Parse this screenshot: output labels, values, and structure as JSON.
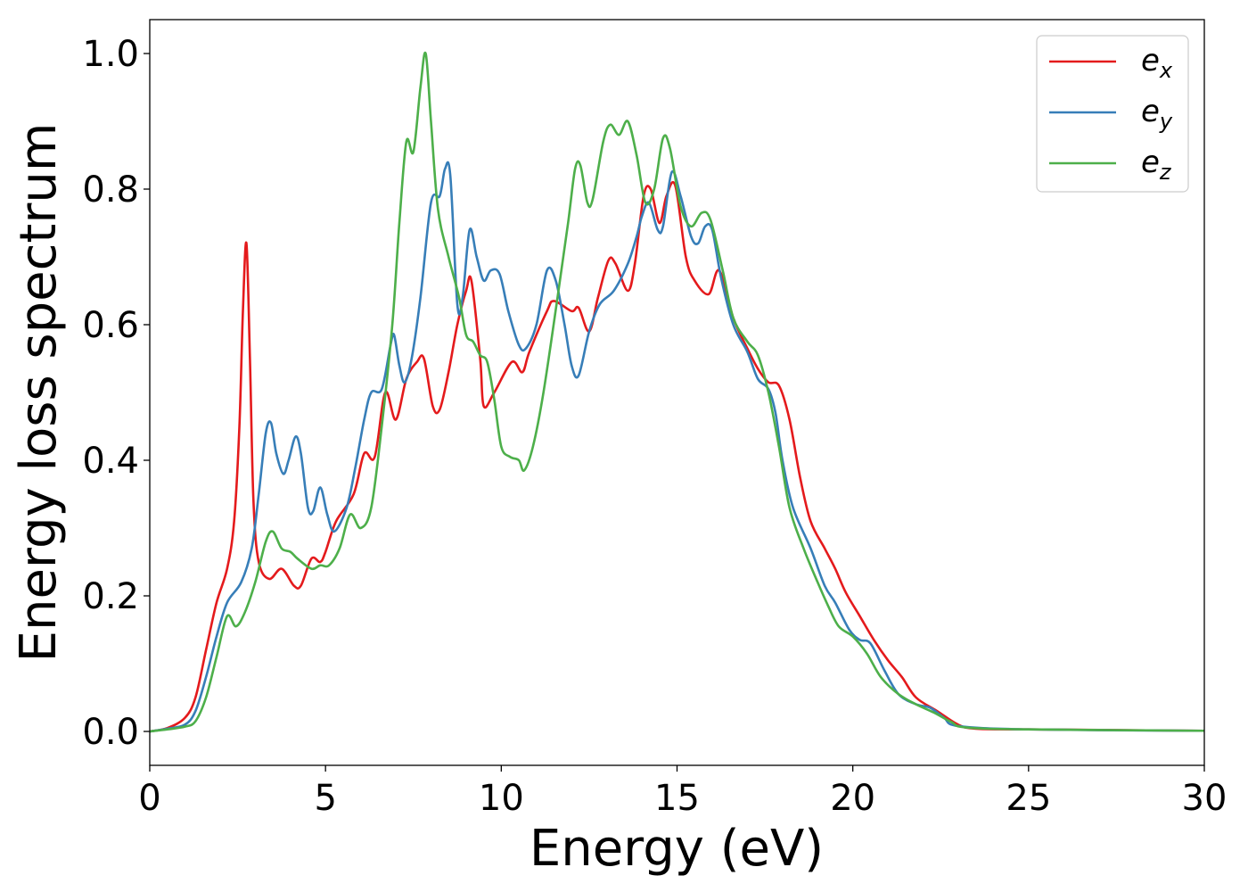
{
  "chart_data": {
    "type": "line",
    "title": "",
    "xlabel": "Energy (eV)",
    "ylabel": "Energy loss spectrum",
    "xlim": [
      0,
      30
    ],
    "ylim": [
      -0.05,
      1.05
    ],
    "xticks": [
      0,
      5,
      10,
      15,
      20,
      25,
      30
    ],
    "xtick_labels": [
      "0",
      "5",
      "10",
      "15",
      "20",
      "25",
      "30"
    ],
    "yticks": [
      0.0,
      0.2,
      0.4,
      0.6,
      0.8,
      1.0
    ],
    "ytick_labels": [
      "0.0",
      "0.2",
      "0.4",
      "0.6",
      "0.8",
      "1.0"
    ],
    "grid": false,
    "legend_position": "top-right",
    "series": [
      {
        "name": "e_x",
        "label_main": "e",
        "label_sub": "x",
        "color": "#e41a1c",
        "points": [
          [
            0,
            0
          ],
          [
            0.5,
            0.005
          ],
          [
            1.0,
            0.02
          ],
          [
            1.3,
            0.05
          ],
          [
            1.6,
            0.12
          ],
          [
            1.9,
            0.19
          ],
          [
            2.2,
            0.24
          ],
          [
            2.4,
            0.31
          ],
          [
            2.55,
            0.45
          ],
          [
            2.65,
            0.62
          ],
          [
            2.75,
            0.72
          ],
          [
            2.85,
            0.55
          ],
          [
            2.95,
            0.34
          ],
          [
            3.1,
            0.25
          ],
          [
            3.4,
            0.225
          ],
          [
            3.75,
            0.24
          ],
          [
            4.1,
            0.215
          ],
          [
            4.3,
            0.215
          ],
          [
            4.6,
            0.255
          ],
          [
            4.85,
            0.25
          ],
          [
            5.0,
            0.265
          ],
          [
            5.3,
            0.31
          ],
          [
            5.8,
            0.35
          ],
          [
            6.1,
            0.41
          ],
          [
            6.4,
            0.405
          ],
          [
            6.7,
            0.5
          ],
          [
            7.0,
            0.46
          ],
          [
            7.3,
            0.52
          ],
          [
            7.6,
            0.545
          ],
          [
            7.8,
            0.55
          ],
          [
            8.05,
            0.48
          ],
          [
            8.25,
            0.475
          ],
          [
            8.5,
            0.53
          ],
          [
            8.75,
            0.6
          ],
          [
            9.0,
            0.65
          ],
          [
            9.15,
            0.665
          ],
          [
            9.4,
            0.55
          ],
          [
            9.5,
            0.48
          ],
          [
            9.8,
            0.5
          ],
          [
            10.3,
            0.545
          ],
          [
            10.6,
            0.53
          ],
          [
            10.8,
            0.56
          ],
          [
            11.3,
            0.62
          ],
          [
            11.5,
            0.635
          ],
          [
            12.0,
            0.62
          ],
          [
            12.2,
            0.625
          ],
          [
            12.5,
            0.59
          ],
          [
            12.75,
            0.64
          ],
          [
            13.05,
            0.695
          ],
          [
            13.25,
            0.69
          ],
          [
            13.6,
            0.65
          ],
          [
            13.8,
            0.69
          ],
          [
            14.05,
            0.79
          ],
          [
            14.25,
            0.8
          ],
          [
            14.5,
            0.75
          ],
          [
            14.7,
            0.79
          ],
          [
            14.95,
            0.805
          ],
          [
            15.25,
            0.7
          ],
          [
            15.5,
            0.665
          ],
          [
            15.9,
            0.645
          ],
          [
            16.2,
            0.68
          ],
          [
            16.6,
            0.61
          ],
          [
            17.0,
            0.565
          ],
          [
            17.3,
            0.535
          ],
          [
            17.6,
            0.515
          ],
          [
            17.9,
            0.51
          ],
          [
            18.2,
            0.46
          ],
          [
            18.5,
            0.375
          ],
          [
            18.8,
            0.31
          ],
          [
            19.2,
            0.27
          ],
          [
            19.5,
            0.24
          ],
          [
            19.8,
            0.205
          ],
          [
            20.2,
            0.17
          ],
          [
            20.6,
            0.135
          ],
          [
            21.0,
            0.105
          ],
          [
            21.4,
            0.08
          ],
          [
            21.8,
            0.05
          ],
          [
            22.4,
            0.03
          ],
          [
            23.0,
            0.01
          ],
          [
            23.5,
            0.004
          ],
          [
            25,
            0.003
          ],
          [
            30,
            0.001
          ]
        ]
      },
      {
        "name": "e_y",
        "label_main": "e",
        "label_sub": "y",
        "color": "#377eb8",
        "points": [
          [
            0,
            0
          ],
          [
            0.5,
            0.004
          ],
          [
            1.0,
            0.01
          ],
          [
            1.3,
            0.03
          ],
          [
            1.6,
            0.08
          ],
          [
            1.9,
            0.14
          ],
          [
            2.2,
            0.19
          ],
          [
            2.6,
            0.22
          ],
          [
            2.9,
            0.27
          ],
          [
            3.1,
            0.35
          ],
          [
            3.3,
            0.44
          ],
          [
            3.45,
            0.455
          ],
          [
            3.6,
            0.41
          ],
          [
            3.8,
            0.38
          ],
          [
            3.95,
            0.4
          ],
          [
            4.15,
            0.435
          ],
          [
            4.3,
            0.41
          ],
          [
            4.5,
            0.33
          ],
          [
            4.65,
            0.325
          ],
          [
            4.85,
            0.36
          ],
          [
            5.05,
            0.32
          ],
          [
            5.25,
            0.295
          ],
          [
            5.6,
            0.33
          ],
          [
            5.85,
            0.39
          ],
          [
            6.1,
            0.46
          ],
          [
            6.3,
            0.5
          ],
          [
            6.6,
            0.505
          ],
          [
            6.85,
            0.57
          ],
          [
            6.95,
            0.585
          ],
          [
            7.1,
            0.54
          ],
          [
            7.25,
            0.515
          ],
          [
            7.45,
            0.55
          ],
          [
            7.7,
            0.64
          ],
          [
            8.0,
            0.78
          ],
          [
            8.25,
            0.79
          ],
          [
            8.4,
            0.83
          ],
          [
            8.55,
            0.82
          ],
          [
            8.75,
            0.63
          ],
          [
            8.9,
            0.64
          ],
          [
            9.1,
            0.74
          ],
          [
            9.3,
            0.7
          ],
          [
            9.5,
            0.665
          ],
          [
            9.7,
            0.68
          ],
          [
            9.95,
            0.675
          ],
          [
            10.2,
            0.62
          ],
          [
            10.5,
            0.57
          ],
          [
            10.7,
            0.565
          ],
          [
            11.0,
            0.6
          ],
          [
            11.3,
            0.68
          ],
          [
            11.55,
            0.665
          ],
          [
            11.8,
            0.6
          ],
          [
            12.0,
            0.54
          ],
          [
            12.2,
            0.525
          ],
          [
            12.5,
            0.59
          ],
          [
            12.8,
            0.63
          ],
          [
            13.2,
            0.65
          ],
          [
            13.6,
            0.69
          ],
          [
            13.85,
            0.73
          ],
          [
            14.0,
            0.76
          ],
          [
            14.2,
            0.78
          ],
          [
            14.45,
            0.74
          ],
          [
            14.6,
            0.745
          ],
          [
            14.85,
            0.825
          ],
          [
            15.1,
            0.79
          ],
          [
            15.4,
            0.73
          ],
          [
            15.6,
            0.72
          ],
          [
            15.8,
            0.745
          ],
          [
            16.0,
            0.74
          ],
          [
            16.25,
            0.67
          ],
          [
            16.6,
            0.6
          ],
          [
            17.0,
            0.56
          ],
          [
            17.3,
            0.52
          ],
          [
            17.6,
            0.505
          ],
          [
            17.8,
            0.47
          ],
          [
            18.0,
            0.4
          ],
          [
            18.3,
            0.33
          ],
          [
            18.8,
            0.27
          ],
          [
            19.2,
            0.215
          ],
          [
            19.5,
            0.19
          ],
          [
            19.9,
            0.15
          ],
          [
            20.2,
            0.135
          ],
          [
            20.5,
            0.13
          ],
          [
            20.9,
            0.09
          ],
          [
            21.3,
            0.055
          ],
          [
            21.8,
            0.04
          ],
          [
            22.2,
            0.035
          ],
          [
            22.6,
            0.02
          ],
          [
            23.0,
            0.008
          ],
          [
            25,
            0.003
          ],
          [
            30,
            0.001
          ]
        ]
      },
      {
        "name": "e_z",
        "label_main": "e",
        "label_sub": "z",
        "color": "#4daf4a",
        "points": [
          [
            0,
            0
          ],
          [
            0.5,
            0.003
          ],
          [
            1.0,
            0.007
          ],
          [
            1.3,
            0.015
          ],
          [
            1.6,
            0.05
          ],
          [
            1.9,
            0.11
          ],
          [
            2.2,
            0.17
          ],
          [
            2.45,
            0.155
          ],
          [
            2.7,
            0.175
          ],
          [
            3.0,
            0.22
          ],
          [
            3.3,
            0.28
          ],
          [
            3.5,
            0.295
          ],
          [
            3.75,
            0.27
          ],
          [
            4.0,
            0.265
          ],
          [
            4.2,
            0.255
          ],
          [
            4.6,
            0.24
          ],
          [
            4.85,
            0.245
          ],
          [
            5.1,
            0.245
          ],
          [
            5.4,
            0.27
          ],
          [
            5.7,
            0.32
          ],
          [
            6.0,
            0.3
          ],
          [
            6.3,
            0.33
          ],
          [
            6.6,
            0.45
          ],
          [
            6.9,
            0.6
          ],
          [
            7.1,
            0.75
          ],
          [
            7.3,
            0.87
          ],
          [
            7.5,
            0.855
          ],
          [
            7.7,
            0.95
          ],
          [
            7.85,
            1.0
          ],
          [
            8.0,
            0.9
          ],
          [
            8.2,
            0.77
          ],
          [
            8.5,
            0.7
          ],
          [
            8.8,
            0.64
          ],
          [
            9.0,
            0.585
          ],
          [
            9.2,
            0.575
          ],
          [
            9.4,
            0.555
          ],
          [
            9.6,
            0.545
          ],
          [
            9.8,
            0.49
          ],
          [
            10.0,
            0.42
          ],
          [
            10.25,
            0.405
          ],
          [
            10.5,
            0.4
          ],
          [
            10.65,
            0.385
          ],
          [
            10.9,
            0.42
          ],
          [
            11.2,
            0.5
          ],
          [
            11.6,
            0.64
          ],
          [
            11.9,
            0.75
          ],
          [
            12.1,
            0.83
          ],
          [
            12.25,
            0.835
          ],
          [
            12.45,
            0.78
          ],
          [
            12.6,
            0.785
          ],
          [
            12.9,
            0.87
          ],
          [
            13.1,
            0.895
          ],
          [
            13.35,
            0.88
          ],
          [
            13.6,
            0.9
          ],
          [
            13.85,
            0.85
          ],
          [
            14.1,
            0.78
          ],
          [
            14.35,
            0.8
          ],
          [
            14.6,
            0.875
          ],
          [
            14.8,
            0.86
          ],
          [
            15.1,
            0.775
          ],
          [
            15.4,
            0.745
          ],
          [
            15.7,
            0.765
          ],
          [
            15.95,
            0.755
          ],
          [
            16.3,
            0.68
          ],
          [
            16.6,
            0.61
          ],
          [
            17.0,
            0.575
          ],
          [
            17.3,
            0.555
          ],
          [
            17.6,
            0.5
          ],
          [
            17.9,
            0.42
          ],
          [
            18.2,
            0.33
          ],
          [
            18.6,
            0.27
          ],
          [
            19.0,
            0.22
          ],
          [
            19.3,
            0.185
          ],
          [
            19.6,
            0.155
          ],
          [
            20.0,
            0.14
          ],
          [
            20.4,
            0.115
          ],
          [
            20.8,
            0.08
          ],
          [
            21.3,
            0.055
          ],
          [
            21.8,
            0.04
          ],
          [
            22.3,
            0.028
          ],
          [
            22.8,
            0.014
          ],
          [
            23.2,
            0.006
          ],
          [
            25,
            0.003
          ],
          [
            30,
            0.001
          ]
        ]
      }
    ]
  }
}
